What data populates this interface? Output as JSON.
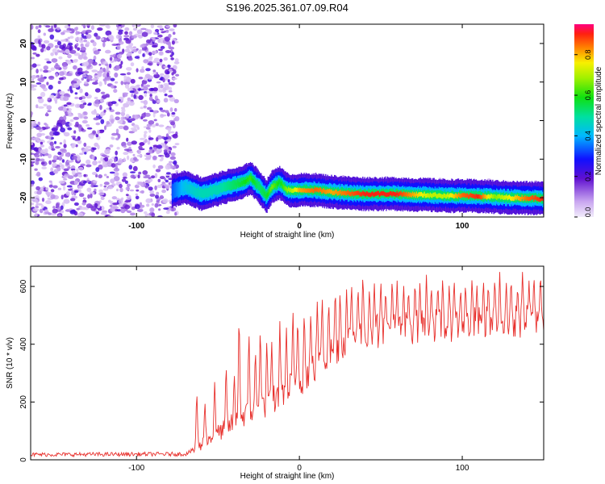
{
  "title": "S196.2025.361.07.09.R04",
  "chart_data": [
    {
      "type": "heatmap",
      "name": "spectrogram",
      "xlabel": "Height of straight line (km)",
      "ylabel": "Frequency (Hz)",
      "xlim": [
        -165,
        150
      ],
      "ylim": [
        -25,
        25
      ],
      "xticks": [
        -100,
        0,
        100
      ],
      "yticks": [
        20,
        10,
        0,
        -10,
        -20
      ],
      "noise_region_x": [
        -165,
        -75
      ],
      "ridge": {
        "x": [
          -78,
          -70,
          -60,
          -50,
          -42,
          -35,
          -30,
          -25,
          -20,
          -17,
          -12,
          -8,
          -4,
          0,
          10,
          20,
          30,
          40,
          50,
          60,
          70,
          80,
          90,
          100,
          110,
          120,
          130,
          140,
          150
        ],
        "freq": [
          -18.3,
          -17.2,
          -19.0,
          -17.8,
          -16.8,
          -16.2,
          -14.8,
          -17.0,
          -19.6,
          -17.4,
          -16.0,
          -17.8,
          -18.2,
          -18.0,
          -18.0,
          -18.5,
          -18.8,
          -19.0,
          -19.0,
          -19.0,
          -19.2,
          -19.3,
          -19.5,
          -19.5,
          -19.6,
          -19.8,
          -20.0,
          -20.1,
          -20.2
        ],
        "amplitude": [
          0.35,
          0.45,
          0.5,
          0.5,
          0.55,
          0.6,
          0.65,
          0.55,
          0.6,
          0.7,
          0.6,
          0.7,
          0.75,
          0.85,
          0.9,
          0.85,
          0.9,
          0.95,
          0.95,
          0.95,
          0.85,
          0.75,
          0.75,
          0.9,
          0.95,
          0.7,
          0.8,
          0.9,
          0.95
        ]
      },
      "colorbar": {
        "label": "Normalized spectral amplitude",
        "range": [
          0.0,
          0.95
        ],
        "ticks": [
          "0.0",
          "0.2",
          "0.4",
          "0.6",
          "0.8"
        ],
        "tick_values": [
          0.0,
          0.2,
          0.4,
          0.6,
          0.8
        ]
      }
    },
    {
      "type": "line",
      "name": "snr",
      "xlabel": "Height of straight line (km)",
      "ylabel": "SNR (10 * v/v)",
      "xlim": [
        -165,
        150
      ],
      "ylim": [
        0,
        670
      ],
      "xticks": [
        -100,
        0,
        100
      ],
      "yticks": [
        0,
        200,
        400,
        600
      ],
      "color": "#e8302c",
      "baseline": {
        "x": [
          -165,
          -70,
          -63,
          -55,
          -45,
          -35,
          -25,
          -15,
          -5,
          5,
          15,
          25,
          40,
          60,
          80,
          100,
          120,
          150
        ],
        "y": [
          18,
          20,
          40,
          75,
          110,
          150,
          180,
          210,
          250,
          300,
          350,
          400,
          440,
          455,
          465,
          470,
          475,
          480
        ]
      },
      "spikes": {
        "x": [
          -63,
          -58,
          -52,
          -45,
          -40,
          -37,
          -31,
          -27,
          -24,
          -20,
          -17,
          -12,
          -8,
          -4,
          -1,
          3,
          7,
          11,
          14,
          18,
          22,
          25,
          29,
          32,
          36,
          39,
          43,
          46,
          50,
          53,
          57,
          60,
          64,
          67,
          71,
          74,
          78,
          81,
          85,
          88,
          92,
          95,
          99,
          102,
          106,
          109,
          113,
          116,
          120,
          123,
          127,
          130,
          134,
          137,
          141,
          144,
          148
        ],
        "y": [
          255,
          210,
          280,
          350,
          310,
          545,
          460,
          400,
          480,
          430,
          420,
          480,
          470,
          540,
          510,
          530,
          520,
          560,
          580,
          560,
          610,
          590,
          600,
          620,
          610,
          660,
          600,
          620,
          630,
          600,
          640,
          620,
          610,
          600,
          630,
          620,
          640,
          610,
          620,
          640,
          610,
          630,
          600,
          620,
          640,
          610,
          630,
          620,
          640,
          650,
          620,
          640,
          610,
          660,
          620,
          650,
          660
        ]
      }
    }
  ]
}
